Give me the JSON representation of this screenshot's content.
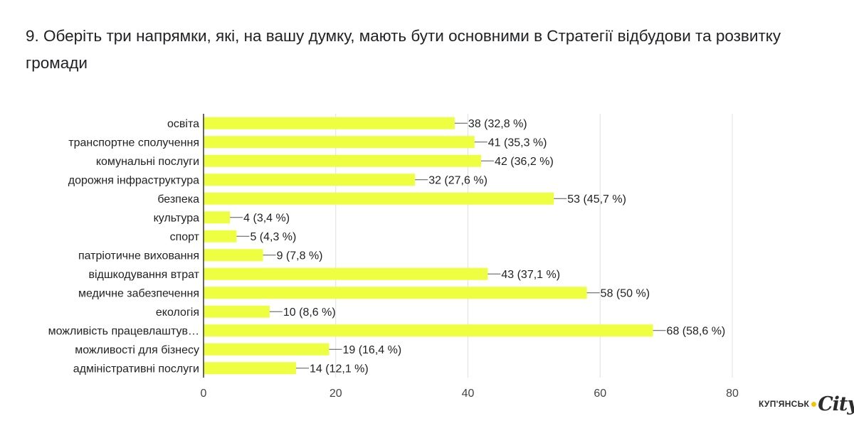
{
  "question": {
    "title": "9. Оберіть три напрямки, які, на вашу думку, мають бути основними в Стратегії відбудови та розвитку громади"
  },
  "chart_data": {
    "type": "bar",
    "orientation": "horizontal",
    "categories": [
      "освіта",
      "транспортне сполучення",
      "комунальні послуги",
      "дорожня інфраструктура",
      "безпека",
      "культура",
      "спорт",
      "патріотичне виховання",
      "відшкодування втрат",
      "медичне забезпечення",
      "екологія",
      "можливість працевлаштув…",
      "можливості для бізнесу",
      "адміністративні послуги"
    ],
    "values": [
      38,
      41,
      42,
      32,
      53,
      4,
      5,
      9,
      43,
      58,
      10,
      68,
      19,
      14
    ],
    "data_labels": [
      "38 (32,8 %)",
      "41 (35,3 %)",
      "42 (36,2 %)",
      "32 (27,6 %)",
      "53 (45,7 %)",
      "4 (3,4 %)",
      "5 (4,3 %)",
      "9 (7,8 %)",
      "43 (37,1 %)",
      "58 (50 %)",
      "10 (8,6 %)",
      "68 (58,6 %)",
      "19 (16,4 %)",
      "14 (12,1 %)"
    ],
    "xlim": [
      0,
      80
    ],
    "xticks": [
      0,
      20,
      40,
      60,
      80
    ],
    "grid": true,
    "legend": "none",
    "colors": {
      "bar": "#eeff41",
      "grid": "#e0e0e0",
      "axis": "#333333",
      "text": "#222222",
      "tick_text": "#444444"
    }
  },
  "watermark": {
    "text": "КУП'ЯНСЬК",
    "city": "City",
    "dot_color": "#f5c400"
  }
}
